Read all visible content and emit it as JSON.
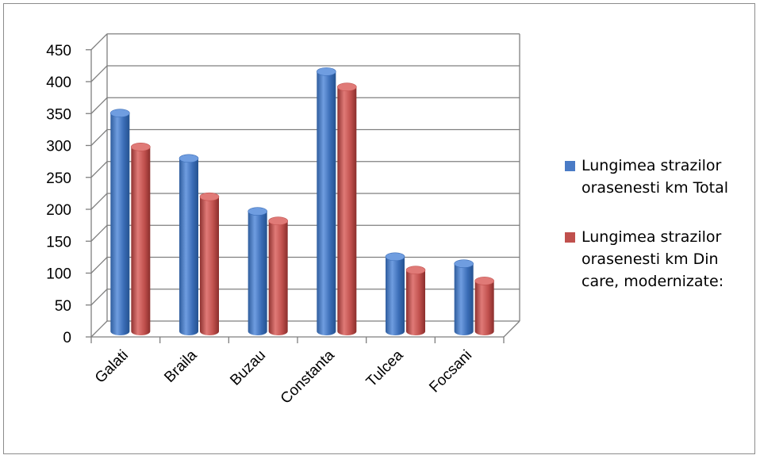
{
  "chart_data": {
    "type": "bar",
    "title": "",
    "xlabel": "",
    "ylabel": "",
    "categories": [
      "Galati",
      "Braila",
      "Buzau",
      "Constanta",
      "Tulcea",
      "Focsani"
    ],
    "series": [
      {
        "name": "Lungimea strazilor orasenesti km Total",
        "color": "#4a7bc6",
        "values": [
          342,
          271,
          188,
          407,
          117,
          106
        ]
      },
      {
        "name": "Lungimea strazilor orasenesti km Din care, modernizate:",
        "color": "#c0504d",
        "values": [
          289,
          211,
          173,
          383,
          96,
          79
        ]
      }
    ],
    "ylim": [
      0,
      450
    ],
    "yticks": [
      0,
      50,
      100,
      150,
      200,
      250,
      300,
      350,
      400,
      450
    ],
    "grid": true,
    "legend_position": "right",
    "style": "3d-cylinder"
  }
}
